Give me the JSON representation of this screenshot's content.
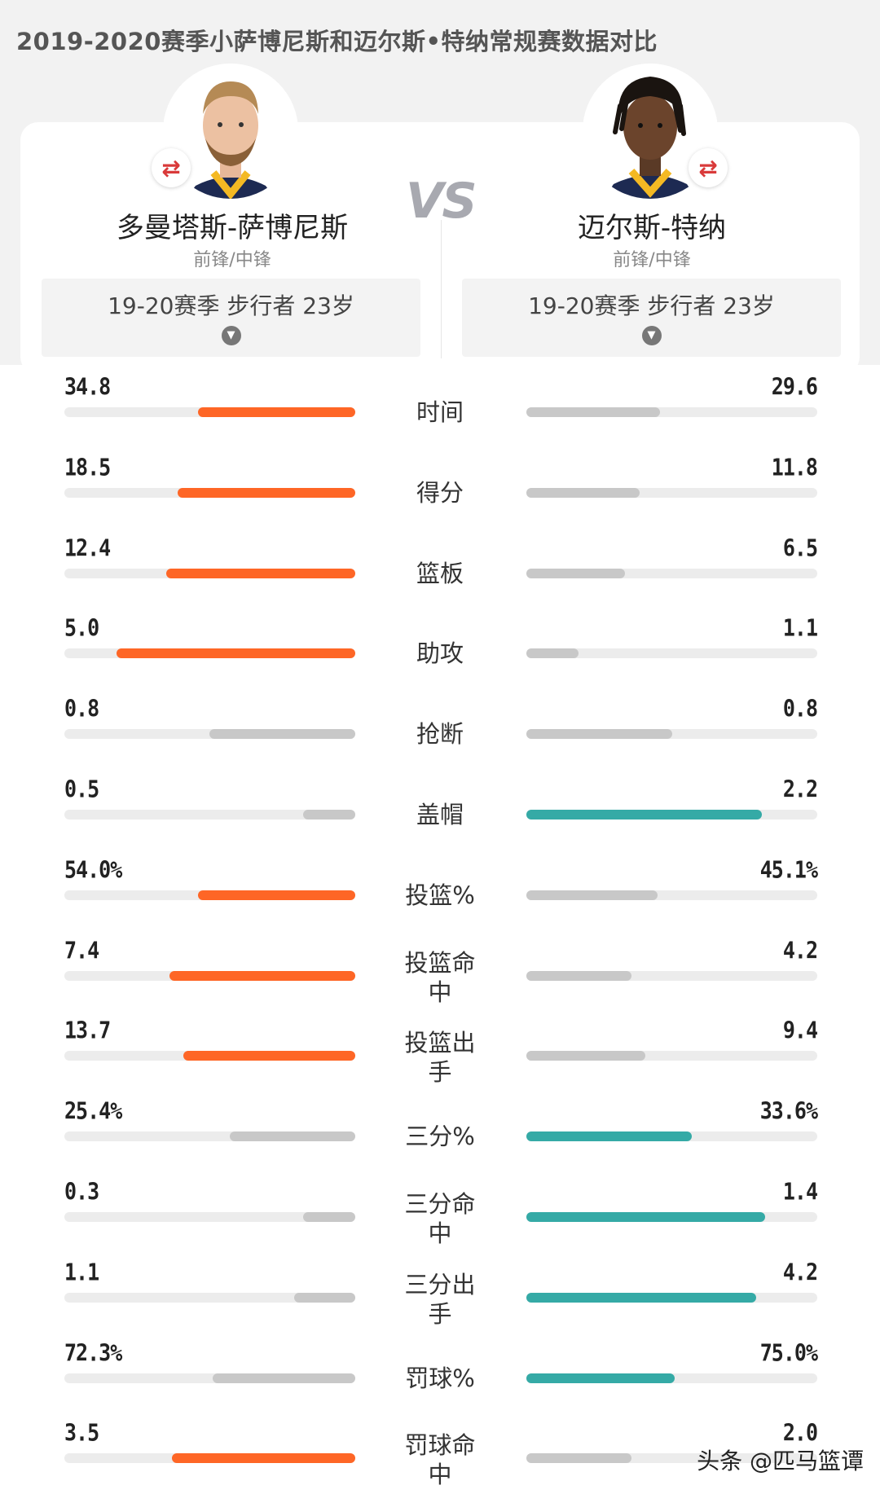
{
  "title": "2019-2020赛季小萨博尼斯和迈尔斯•特纳常规赛数据对比",
  "vs_label": "VS",
  "players": [
    {
      "name": "多曼塔斯-萨博尼斯",
      "position": "前锋/中锋",
      "season": "19-20赛季 步行者 23岁",
      "swap_icon": "⇄"
    },
    {
      "name": "迈尔斯-特纳",
      "position": "前锋/中锋",
      "season": "19-20赛季 步行者 23岁",
      "swap_icon": "⇄"
    }
  ],
  "colors": {
    "left_win": "#fe6626",
    "right_win": "#35aaa6",
    "lose": "#c8c8c8",
    "track": "#ececec"
  },
  "stats": [
    {
      "label": "时间",
      "left": "34.8",
      "right": "29.6",
      "left_fill": 0.54,
      "right_fill": 0.46,
      "winner": "left"
    },
    {
      "label": "得分",
      "left": "18.5",
      "right": "11.8",
      "left_fill": 0.61,
      "right_fill": 0.39,
      "winner": "left"
    },
    {
      "label": "篮板",
      "left": "12.4",
      "right": "6.5",
      "left_fill": 0.65,
      "right_fill": 0.34,
      "winner": "left"
    },
    {
      "label": "助攻",
      "left": "5.0",
      "right": "1.1",
      "left_fill": 0.82,
      "right_fill": 0.18,
      "winner": "left"
    },
    {
      "label": "抢断",
      "left": "0.8",
      "right": "0.8",
      "left_fill": 0.5,
      "right_fill": 0.5,
      "winner": "none"
    },
    {
      "label": "盖帽",
      "left": "0.5",
      "right": "2.2",
      "left_fill": 0.18,
      "right_fill": 0.81,
      "winner": "right"
    },
    {
      "label": "投篮%",
      "left": "54.0%",
      "right": "45.1%",
      "left_fill": 0.54,
      "right_fill": 0.45,
      "winner": "left"
    },
    {
      "label": "投篮命中",
      "left": "7.4",
      "right": "4.2",
      "left_fill": 0.64,
      "right_fill": 0.36,
      "winner": "left"
    },
    {
      "label": "投篮出手",
      "left": "13.7",
      "right": "9.4",
      "left_fill": 0.59,
      "right_fill": 0.41,
      "winner": "left"
    },
    {
      "label": "三分%",
      "left": "25.4%",
      "right": "33.6%",
      "left_fill": 0.43,
      "right_fill": 0.57,
      "winner": "right"
    },
    {
      "label": "三分命中",
      "left": "0.3",
      "right": "1.4",
      "left_fill": 0.18,
      "right_fill": 0.82,
      "winner": "right"
    },
    {
      "label": "三分出手",
      "left": "1.1",
      "right": "4.2",
      "left_fill": 0.21,
      "right_fill": 0.79,
      "winner": "right"
    },
    {
      "label": "罚球%",
      "left": "72.3%",
      "right": "75.0%",
      "left_fill": 0.49,
      "right_fill": 0.51,
      "winner": "right"
    },
    {
      "label": "罚球命中",
      "left": "3.5",
      "right": "2.0",
      "left_fill": 0.63,
      "right_fill": 0.36,
      "winner": "left"
    }
  ],
  "watermark": "头条 @匹马篮谭"
}
